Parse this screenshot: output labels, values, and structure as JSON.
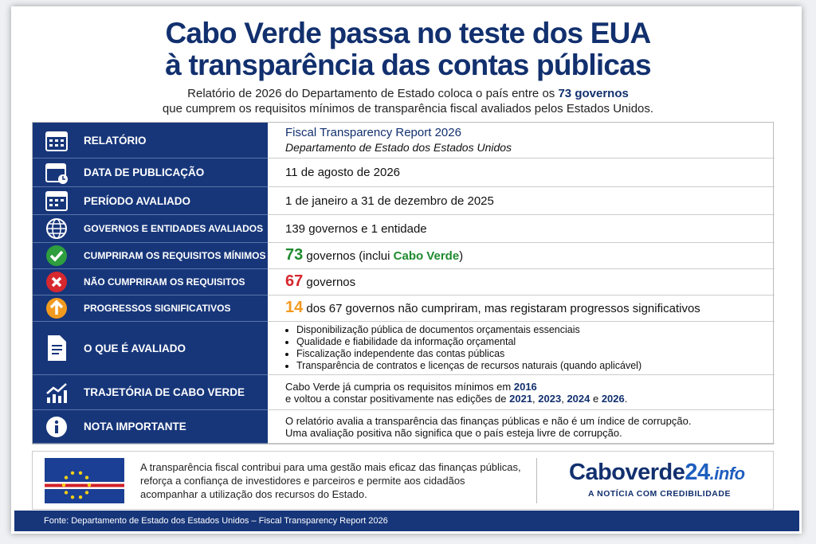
{
  "header": {
    "title": [
      "Cabo Verde passa no teste dos EUA",
      "à transparência das contas públicas"
    ],
    "subtitle": [
      "Relatório de 2026 do Departamento de Estado coloca o país entre os ",
      "73 governos",
      "que cumprem os requisitos mínimos de transparência fiscal avaliados pelos Estados Unidos."
    ]
  },
  "table": {
    "rows": [
      {
        "label": "RELATÓRIO",
        "value": [
          "Fiscal Transparency Report 2026",
          "Departamento de Estado dos Estados Unidos"
        ]
      },
      {
        "label": "DATA DE PUBLICAÇÃO",
        "value": [
          "11 de agosto de 2026"
        ]
      },
      {
        "label": "PERÍODO AVALIADO",
        "value": [
          "1 de janeiro a 31 de dezembro de 2025"
        ]
      },
      {
        "label": "GOVERNOS E ENTIDADES AVALIADOS",
        "value": [
          "139 governos e 1 entidade"
        ]
      },
      {
        "label": "CUMPRIRAM OS REQUISITOS MÍNIMOS",
        "value": [
          "73",
          " governos (inclui ",
          "Cabo Verde",
          ")"
        ]
      },
      {
        "label": "NÃO CUMPRIRAM OS REQUISITOS",
        "value": [
          "67",
          " governos"
        ]
      },
      {
        "label": "PROGRESSOS SIGNIFICATIVOS",
        "value": [
          "14",
          " dos 67 governos não cumpriram, mas registaram progressos significativos"
        ]
      },
      {
        "label": "O QUE É AVALIADO",
        "value": [
          "Disponibilização pública de documentos orçamentais essenciais",
          "Qualidade e fiabilidade da informação orçamental",
          "Fiscalização independente das contas públicas",
          "Transparência de contratos e licenças de recursos naturais (quando aplicável)"
        ]
      },
      {
        "label": "TRAJETÓRIA DE CABO VERDE",
        "value": [
          "Cabo Verde já cumpria os requisitos mínimos em ",
          "2016",
          "e voltou a constar positivamente nas edições de ",
          "2021",
          ", ",
          "2023",
          ", ",
          "2024",
          " e ",
          "2026",
          "."
        ]
      },
      {
        "label": "NOTA IMPORTANTE",
        "value": [
          "O relatório avalia a transparência das finanças públicas e não é um índice de corrupção.",
          "Uma avaliação positiva não significa que o país esteja livre de corrupção."
        ]
      }
    ]
  },
  "footer": {
    "text": "A transparência fiscal contribui para uma gestão mais eficaz das finanças públicas, reforça a confiança de investidores e parceiros e permite aos cidadãos acompanhar a utilização dos recursos do Estado.",
    "logo": [
      "Caboverde",
      "24",
      ".info"
    ],
    "tagline": "A NOTÍCIA COM CREDIBILIDADE",
    "source": "Fonte: Departamento de Estado dos Estados Unidos – Fiscal Transparency Report 2026"
  }
}
